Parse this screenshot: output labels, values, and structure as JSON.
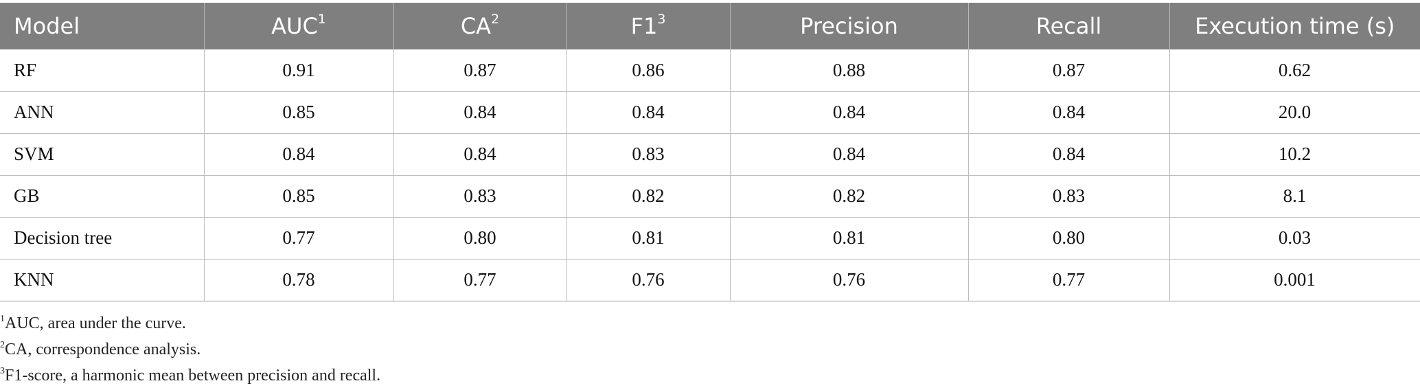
{
  "table": {
    "headers": [
      {
        "label": "Model",
        "sup": ""
      },
      {
        "label": "AUC",
        "sup": "1"
      },
      {
        "label": "CA",
        "sup": "2"
      },
      {
        "label": "F1",
        "sup": "3"
      },
      {
        "label": "Precision",
        "sup": ""
      },
      {
        "label": "Recall",
        "sup": ""
      },
      {
        "label": "Execution time (s)",
        "sup": ""
      }
    ],
    "rows": [
      [
        "RF",
        "0.91",
        "0.87",
        "0.86",
        "0.88",
        "0.87",
        "0.62"
      ],
      [
        "ANN",
        "0.85",
        "0.84",
        "0.84",
        "0.84",
        "0.84",
        "20.0"
      ],
      [
        "SVM",
        "0.84",
        "0.84",
        "0.83",
        "0.84",
        "0.84",
        "10.2"
      ],
      [
        "GB",
        "0.85",
        "0.83",
        "0.82",
        "0.82",
        "0.83",
        "8.1"
      ],
      [
        "Decision tree",
        "0.77",
        "0.80",
        "0.81",
        "0.81",
        "0.80",
        "0.03"
      ],
      [
        "KNN",
        "0.78",
        "0.77",
        "0.76",
        "0.76",
        "0.77",
        "0.001"
      ]
    ]
  },
  "footnotes": [
    {
      "mark": "1",
      "text": "AUC, area under the curve."
    },
    {
      "mark": "2",
      "text": "CA, correspondence analysis."
    },
    {
      "mark": "3",
      "text": "F1-score, a harmonic mean between precision and recall."
    }
  ],
  "colors": {
    "header_bg": "#7f7f7f",
    "header_text": "#ffffff",
    "grid_line": "#bdbdbd"
  }
}
